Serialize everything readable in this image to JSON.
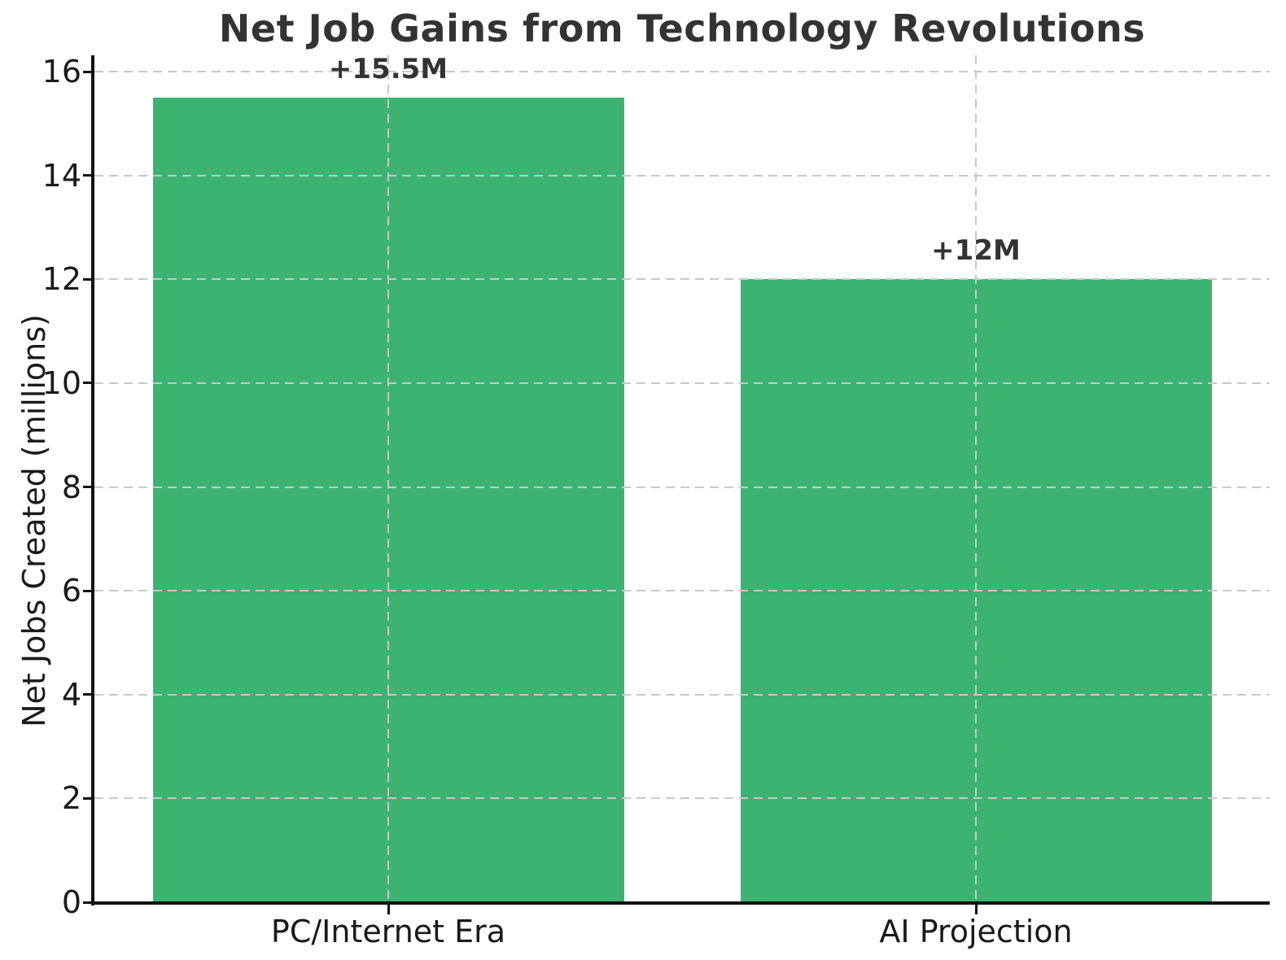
{
  "chart_data": {
    "type": "bar",
    "title": "Net Job Gains from Technology Revolutions",
    "xlabel": "",
    "ylabel": "Net Jobs Created (millions)",
    "categories": [
      "PC/Internet Era",
      "AI Projection"
    ],
    "values": [
      15.5,
      12
    ],
    "bar_labels": [
      "+15.5M",
      "+12M"
    ],
    "yticks": [
      0,
      2,
      4,
      6,
      8,
      10,
      12,
      14,
      16
    ],
    "ylim": [
      0,
      16.35
    ],
    "grid": "dashed, drawn above bars, horizontal at y-ticks and vertical at category centers",
    "legend_position": "none",
    "colors": {
      "bar": "#3cb371",
      "grid": "#c8c8c8",
      "title": "#333333",
      "axis_text": "#1a1a1a",
      "spine": "#111111",
      "background": "#ffffff"
    }
  }
}
